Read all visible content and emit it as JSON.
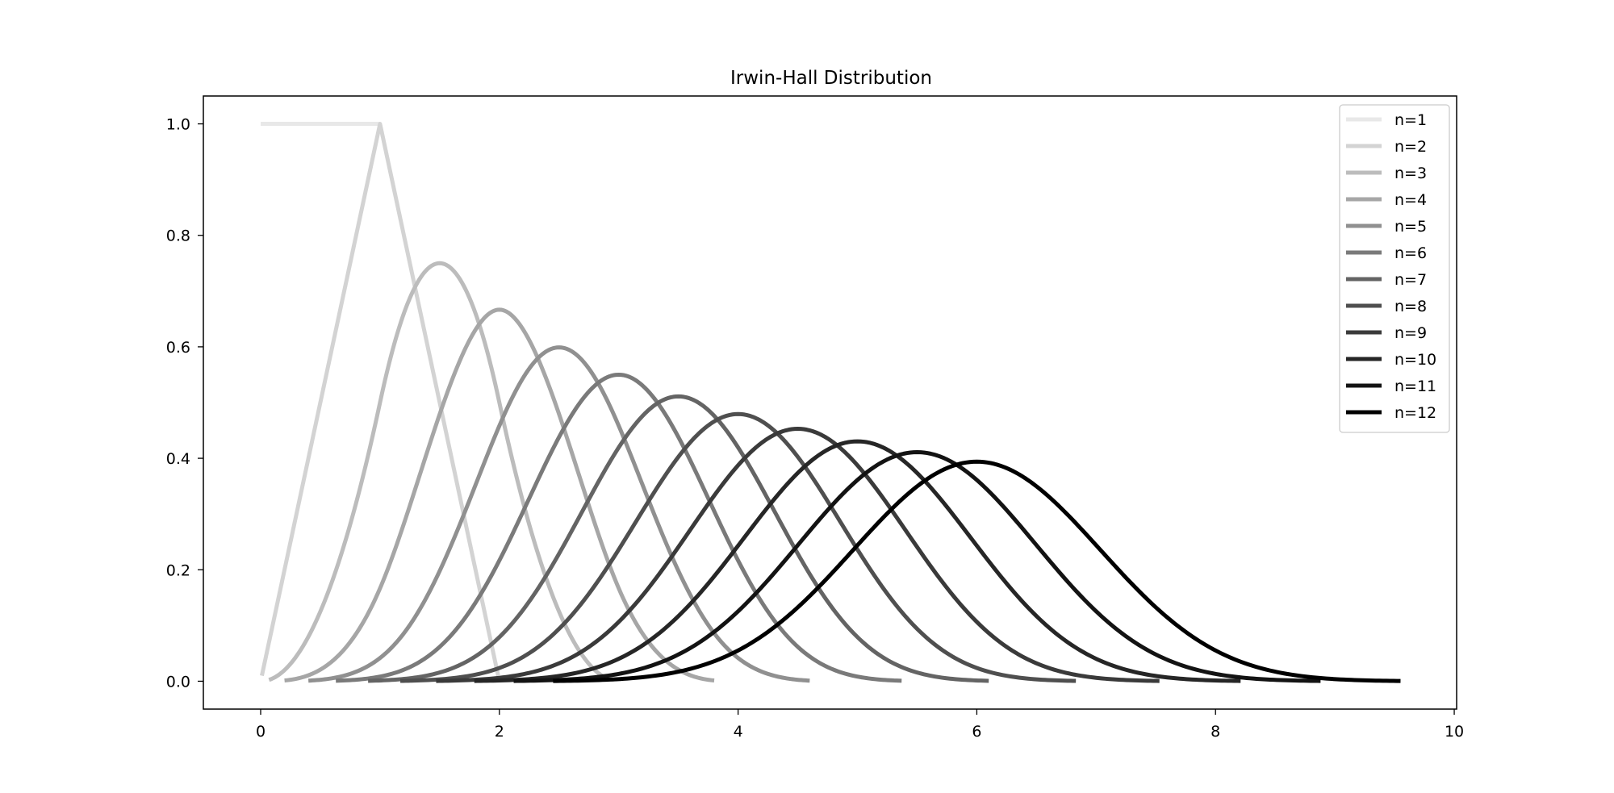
{
  "chart_data": {
    "type": "line",
    "title": "Irwin-Hall Distribution",
    "xlabel": "",
    "ylabel": "",
    "xlim": [
      -0.48,
      10.02
    ],
    "ylim": [
      -0.05,
      1.05
    ],
    "x_ticks": [
      0,
      2,
      4,
      6,
      8,
      10
    ],
    "x_tick_labels": [
      "0",
      "2",
      "4",
      "6",
      "8",
      "10"
    ],
    "y_ticks": [
      0.0,
      0.2,
      0.4,
      0.6,
      0.8,
      1.0
    ],
    "y_tick_labels": [
      "0.0",
      "0.2",
      "0.4",
      "0.6",
      "0.8",
      "1.0"
    ],
    "grid": false,
    "legend_position": "upper right",
    "series": [
      {
        "name": "n=1",
        "n": 1,
        "x_range": [
          0.0,
          1.0
        ],
        "color": "#e8e8e8"
      },
      {
        "name": "n=2",
        "n": 2,
        "x_range": [
          0.01,
          1.99
        ],
        "color": "#d3d3d3"
      },
      {
        "name": "n=3",
        "n": 3,
        "x_range": [
          0.07,
          2.93
        ],
        "color": "#bcbcbc"
      },
      {
        "name": "n=4",
        "n": 4,
        "x_range": [
          0.2,
          3.8
        ],
        "color": "#a6a6a6"
      },
      {
        "name": "n=5",
        "n": 5,
        "x_range": [
          0.4,
          4.6
        ],
        "color": "#909090"
      },
      {
        "name": "n=6",
        "n": 6,
        "x_range": [
          0.63,
          5.37
        ],
        "color": "#7a7a7a"
      },
      {
        "name": "n=7",
        "n": 7,
        "x_range": [
          0.9,
          6.1
        ],
        "color": "#646464"
      },
      {
        "name": "n=8",
        "n": 8,
        "x_range": [
          1.17,
          6.83
        ],
        "color": "#4f4f4f"
      },
      {
        "name": "n=9",
        "n": 9,
        "x_range": [
          1.47,
          7.53
        ],
        "color": "#3a3a3a"
      },
      {
        "name": "n=10",
        "n": 10,
        "x_range": [
          1.79,
          8.21
        ],
        "color": "#262626"
      },
      {
        "name": "n=11",
        "n": 11,
        "x_range": [
          2.12,
          8.88
        ],
        "color": "#131313"
      },
      {
        "name": "n=12",
        "n": 12,
        "x_range": [
          2.45,
          9.55
        ],
        "color": "#000000"
      }
    ]
  }
}
